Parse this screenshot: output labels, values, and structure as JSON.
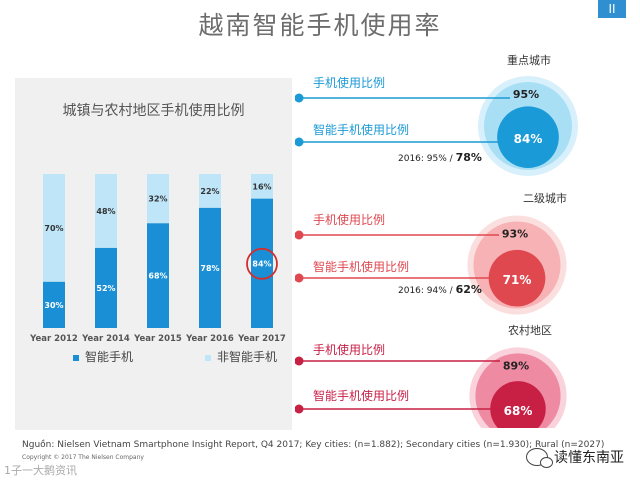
{
  "page": {
    "title": "越南智能手机使用率",
    "corner_badge": "II",
    "source": "Nguồn: Nielsen Vietnam Smartphone Insight Report, Q4 2017; Key cities: (n=1.882); Secondary cities (n=1.930); Rural (n=2027)",
    "copyright": "Copyright © 2017 The Nielsen Company",
    "watermark": "读懂东南亚",
    "bottom_left_mark": "1子一大鹅资讯"
  },
  "colors": {
    "smartphone": "#1a8fd6",
    "non_smartphone": "#bfe6f8",
    "key_city": "#1a9ad6",
    "secondary_city": "#e0484f",
    "rural": "#c81f45",
    "highlight_circle": "#d32f2f"
  },
  "chart_data": [
    {
      "type": "bar",
      "stacked": true,
      "title": "城镇与农村地区手机使用比例",
      "categories": [
        "Year 2012",
        "Year 2014",
        "Year 2015",
        "Year 2016",
        "Year 2017"
      ],
      "series": [
        {
          "name": "智能手机",
          "values": [
            30,
            52,
            68,
            78,
            84
          ]
        },
        {
          "name": "非智能手机",
          "values": [
            70,
            48,
            32,
            22,
            16
          ]
        }
      ],
      "value_labels": {
        "smart": [
          "30%",
          "52%",
          "68%",
          "78%",
          "84%"
        ],
        "non_smart": [
          "70%",
          "48%",
          "32%",
          "22%",
          "16%"
        ]
      },
      "ylim": [
        0,
        100
      ],
      "grid": false,
      "legend": "bottom",
      "highlighted_category": "Year 2017"
    },
    {
      "type": "bubble",
      "groups": [
        {
          "name": "重点城市",
          "rows": [
            {
              "label": "手机使用比例",
              "value": 95,
              "value_label": "95%"
            },
            {
              "label": "智能手机使用比例",
              "value": 84,
              "value_label": "84%"
            }
          ],
          "note_prefix": "2016: 95% / ",
          "note_value": "78%"
        },
        {
          "name": "二级城市",
          "rows": [
            {
              "label": "手机使用比例",
              "value": 93,
              "value_label": "93%"
            },
            {
              "label": "智能手机使用比例",
              "value": 71,
              "value_label": "71%"
            }
          ],
          "note_prefix": "2016: 94% / ",
          "note_value": "62%"
        },
        {
          "name": "农村地区",
          "rows": [
            {
              "label": "手机使用比例",
              "value": 89,
              "value_label": "89%"
            },
            {
              "label": "智能手机使用比例",
              "value": 68,
              "value_label": "68%"
            }
          ],
          "note_prefix": "",
          "note_value": ""
        }
      ]
    }
  ]
}
